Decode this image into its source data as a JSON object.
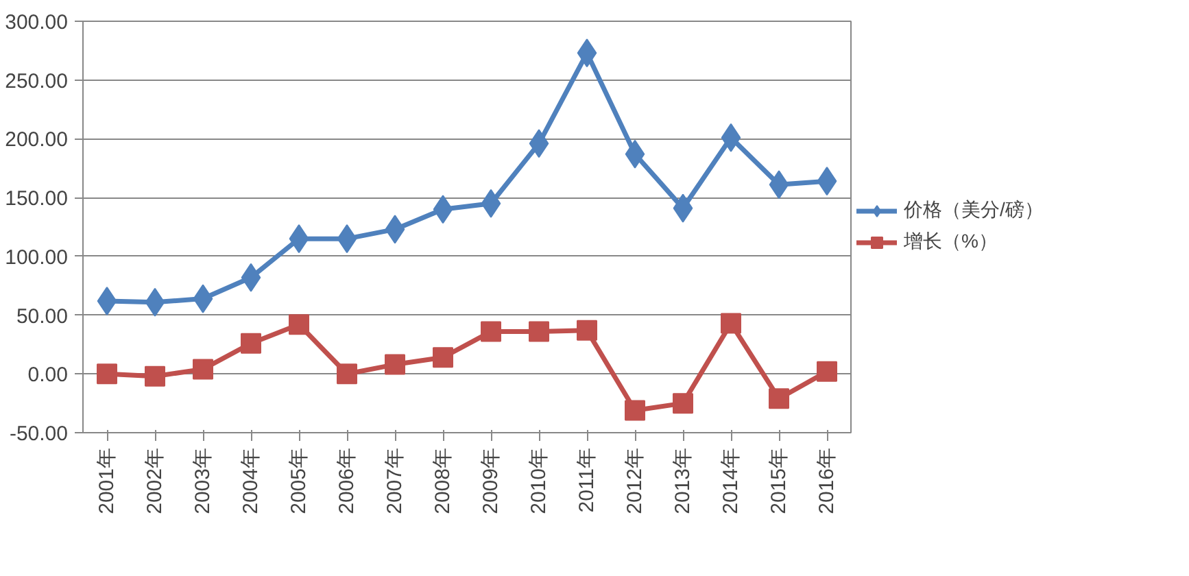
{
  "chart_data": {
    "type": "line",
    "categories": [
      "2001年",
      "2002年",
      "2003年",
      "2004年",
      "2005年",
      "2006年",
      "2007年",
      "2008年",
      "2009年",
      "2010年",
      "2011年",
      "2012年",
      "2013年",
      "2014年",
      "2015年",
      "2016年"
    ],
    "series": [
      {
        "name": "价格（美分/磅）",
        "color": "#4f81bd",
        "marker": "diamond",
        "values": [
          62,
          61,
          64,
          82,
          115,
          115,
          123,
          140,
          145,
          196,
          273,
          187,
          141,
          201,
          161,
          164
        ]
      },
      {
        "name": "增长（%）",
        "color": "#c0504d",
        "marker": "square",
        "values": [
          0,
          -2,
          4,
          26,
          42,
          0,
          8,
          14,
          36,
          36,
          37,
          -31,
          -25,
          43,
          -21,
          2
        ]
      }
    ],
    "ylim": [
      -50,
      300
    ],
    "yticks": [
      {
        "value": -50,
        "label": "-50.00"
      },
      {
        "value": 0,
        "label": "0.00"
      },
      {
        "value": 50,
        "label": "50.00"
      },
      {
        "value": 100,
        "label": "100.00"
      },
      {
        "value": 150,
        "label": "150.00"
      },
      {
        "value": 200,
        "label": "200.00"
      },
      {
        "value": 250,
        "label": "250.00"
      },
      {
        "value": 300,
        "label": "300.00"
      }
    ],
    "grid": "y",
    "legend": "right",
    "line_style": "solid"
  }
}
